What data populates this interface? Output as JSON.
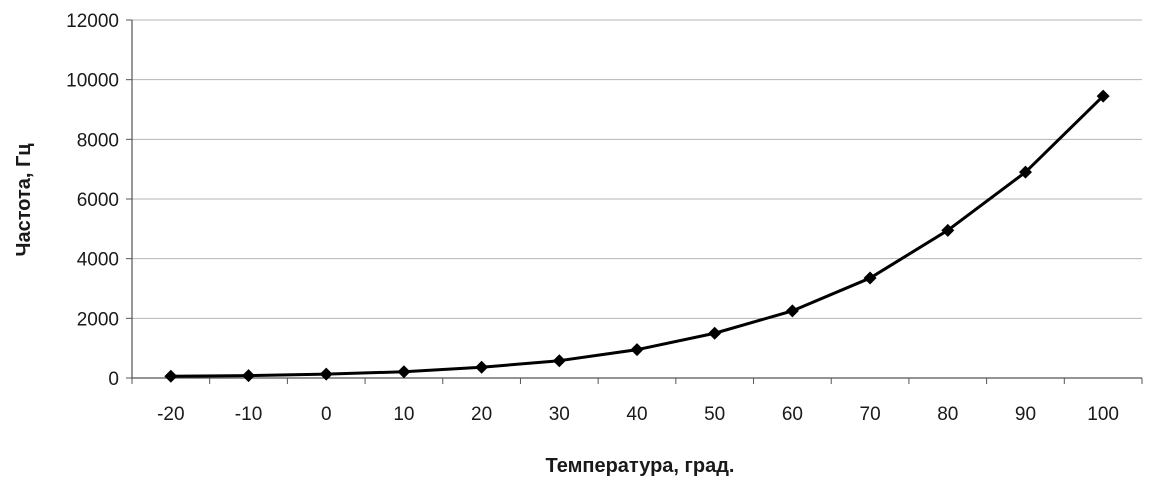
{
  "chart_data": {
    "type": "line",
    "title": "",
    "xlabel": "Температура, град.",
    "ylabel": "Частота, Гц",
    "categories": [
      "-20",
      "-10",
      "0",
      "10",
      "20",
      "30",
      "40",
      "50",
      "60",
      "70",
      "80",
      "90",
      "100"
    ],
    "series": [
      {
        "values": [
          60,
          80,
          130,
          210,
          360,
          580,
          950,
          1500,
          2250,
          3350,
          4950,
          6900,
          9450
        ]
      }
    ],
    "ylim": [
      0,
      12000
    ],
    "yticks": [
      "0",
      "2000",
      "4000",
      "6000",
      "8000",
      "10000",
      "12000"
    ],
    "grid": "horizontal",
    "marker": "diamond",
    "colors": {
      "line": "#000000",
      "grid": "#b5b5b5",
      "axis": "#555555",
      "text": "#1a1a1a"
    }
  }
}
